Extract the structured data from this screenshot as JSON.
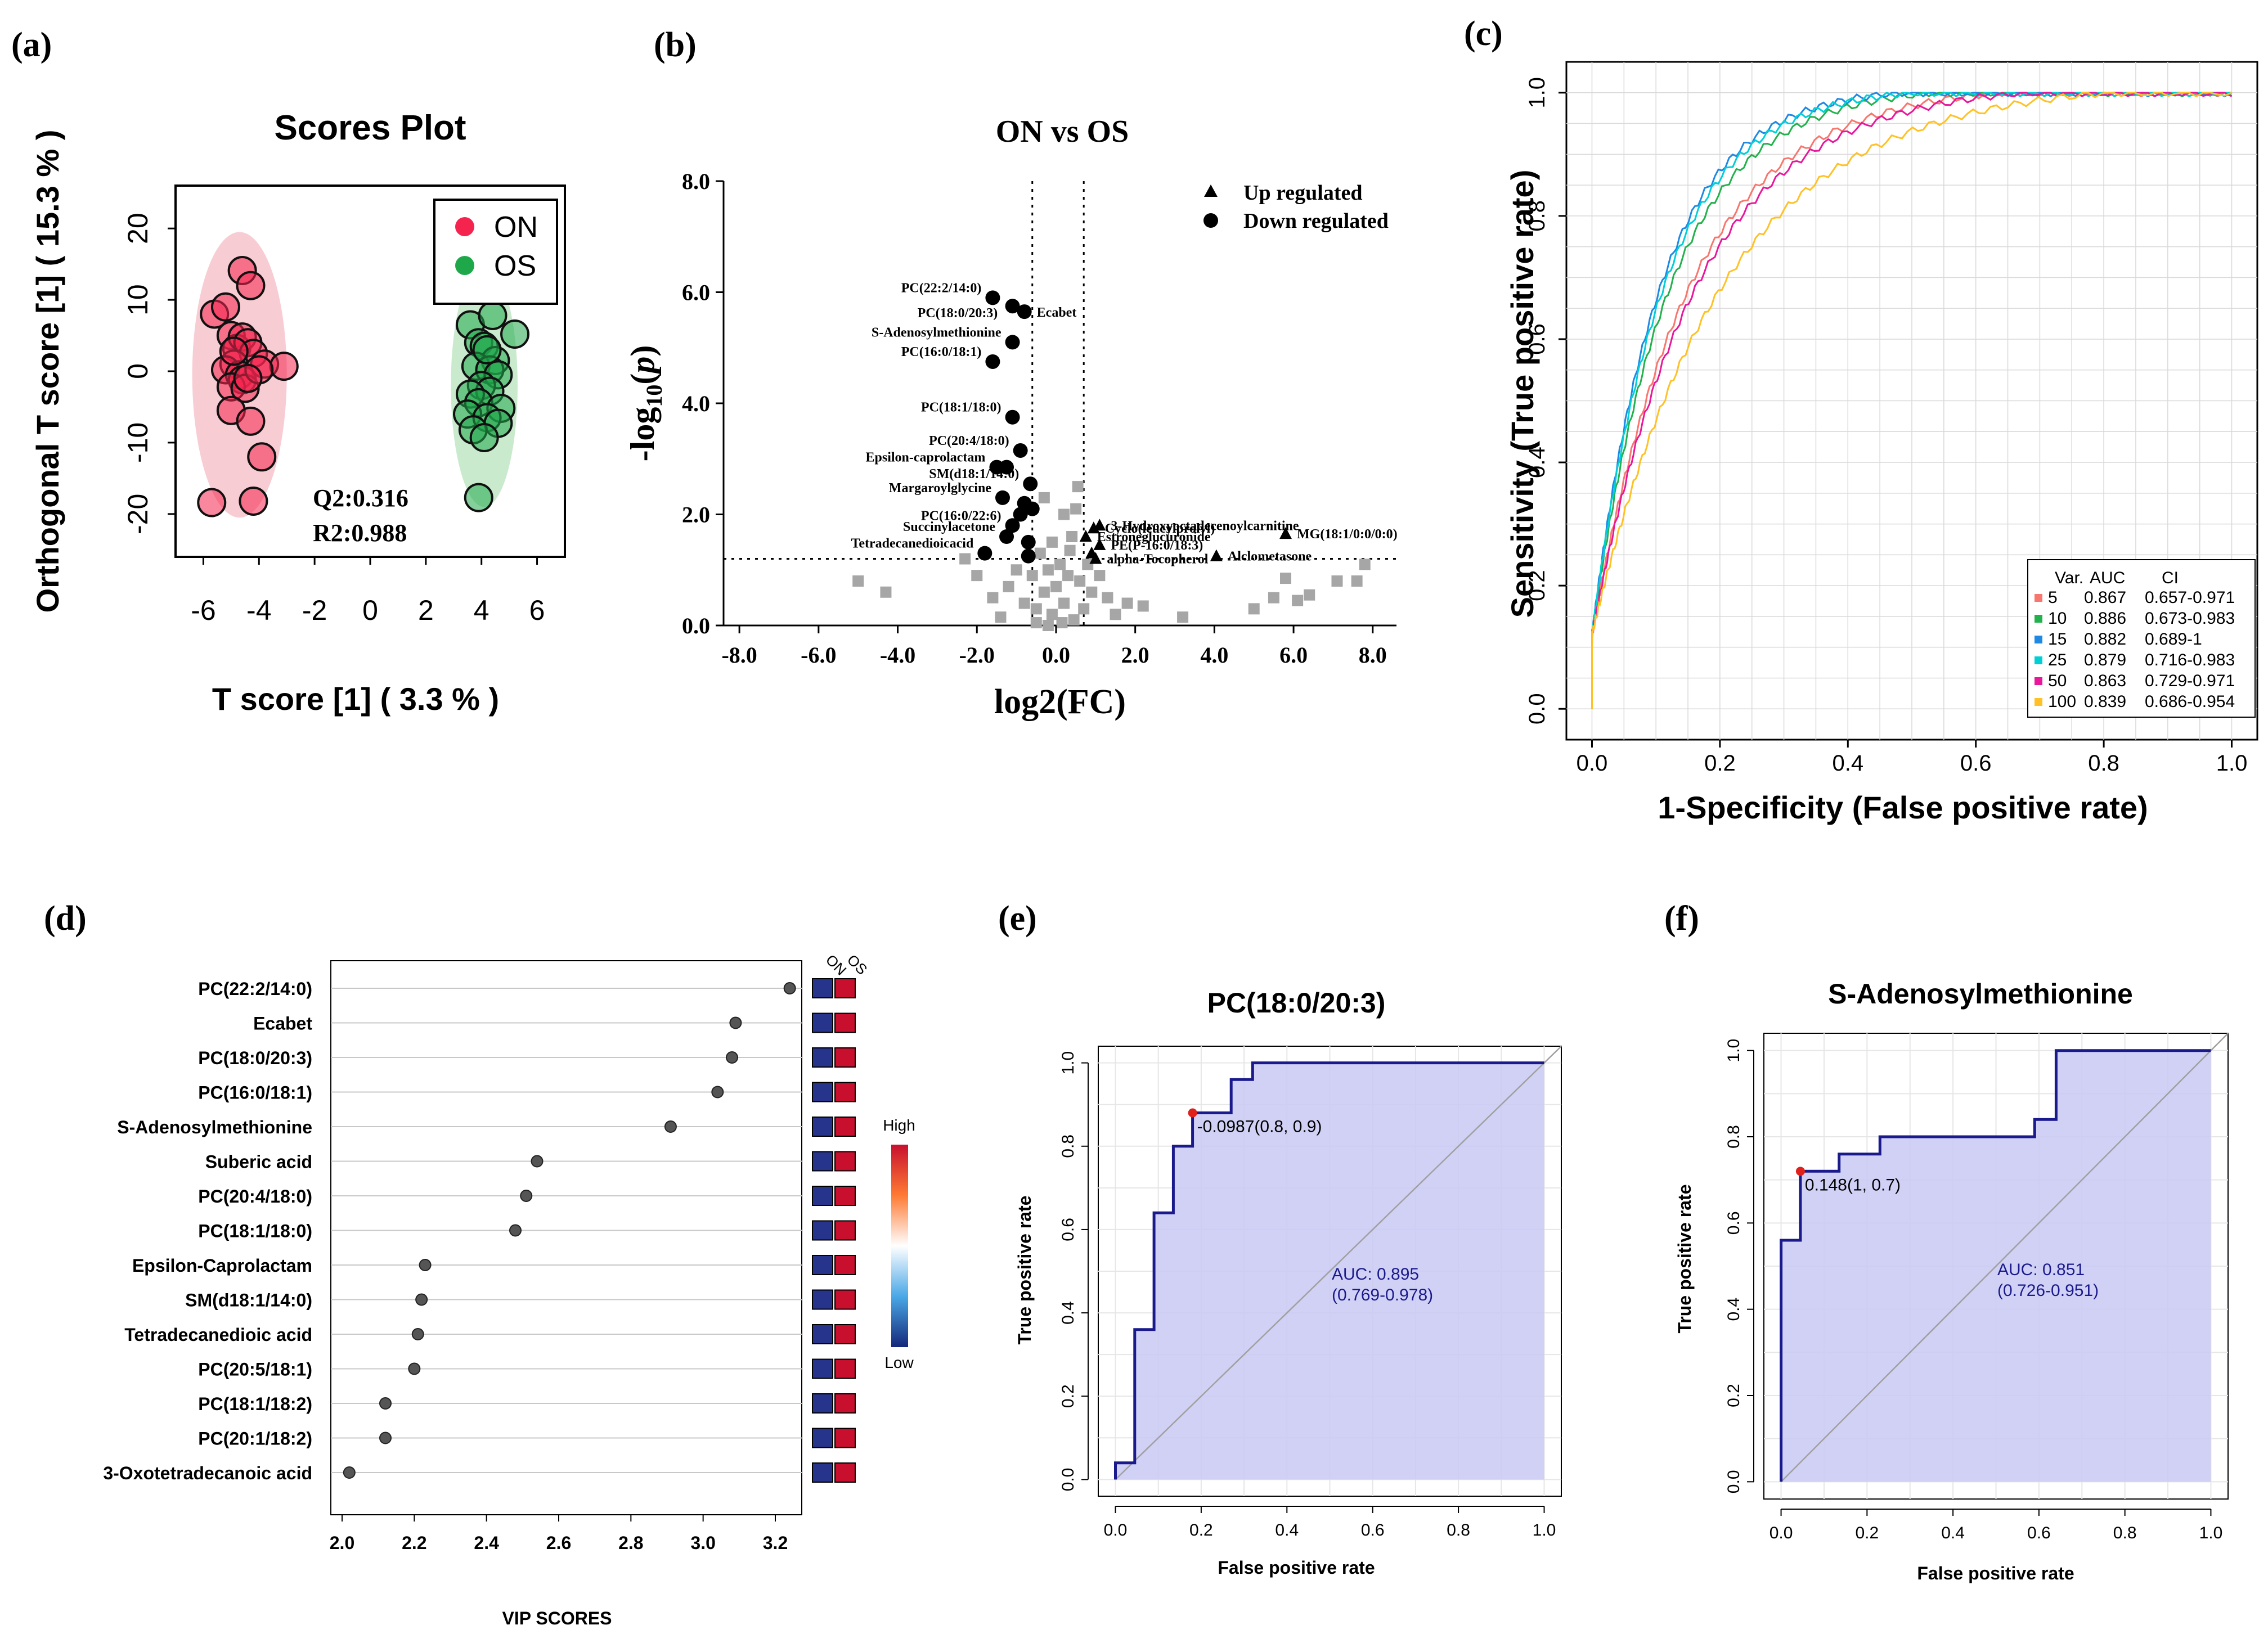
{
  "panel_labels": [
    "(a)",
    "(b)",
    "(c)",
    "(d)",
    "(e)",
    "(f)"
  ],
  "chart_data": [
    {
      "id": "a",
      "type": "scatter",
      "title": "Scores Plot",
      "xlabel": "T score [1] ( 3.3 % )",
      "ylabel": "Orthogonal T score [1] ( 15.3 % )",
      "xlim": [
        -7,
        7
      ],
      "ylim": [
        -26,
        26
      ],
      "xticks": [
        -6,
        -4,
        -2,
        0,
        2,
        4,
        6
      ],
      "yticks": [
        -20,
        -10,
        0,
        10,
        20
      ],
      "legend": [
        {
          "name": "ON",
          "color": "#f4244f"
        },
        {
          "name": "OS",
          "color": "#1fa84a"
        }
      ],
      "annotations": [
        "Q2:0.316",
        "R2:0.988"
      ],
      "ellipses": [
        {
          "group": "ON",
          "cx": -4.7,
          "cy": -0.5,
          "rx": 1.7,
          "ry": 20,
          "color": "#f3a3ae"
        },
        {
          "group": "OS",
          "cx": 4.1,
          "cy": -2,
          "rx": 1.2,
          "ry": 17,
          "color": "#9fd8a6"
        }
      ],
      "series": [
        {
          "name": "ON",
          "color": "#f4244f",
          "points": [
            [
              -5.6,
              8
            ],
            [
              -5.2,
              9
            ],
            [
              -4.6,
              14.1
            ],
            [
              -4.3,
              12
            ],
            [
              -5.0,
              5
            ],
            [
              -4.8,
              3.2
            ],
            [
              -4.6,
              4.8
            ],
            [
              -4.4,
              4
            ],
            [
              -4.2,
              2.5
            ],
            [
              -4.9,
              1
            ],
            [
              -5.2,
              0.2
            ],
            [
              -4.7,
              -0.5
            ],
            [
              -4.6,
              -1.2
            ],
            [
              -5.0,
              -2.2
            ],
            [
              -4.5,
              -2.4
            ],
            [
              -3.8,
              1
            ],
            [
              -3.1,
              0.7
            ],
            [
              -4.0,
              0.2
            ],
            [
              -5.0,
              -5.5
            ],
            [
              -4.3,
              -7
            ],
            [
              -3.9,
              -12
            ],
            [
              -5.7,
              -18.4
            ],
            [
              -4.2,
              -18.2
            ],
            [
              -4.9,
              2.8
            ],
            [
              -4.4,
              -1
            ]
          ]
        },
        {
          "name": "OS",
          "color": "#1fa84a",
          "points": [
            [
              3.6,
              6.5
            ],
            [
              4.4,
              7.8
            ],
            [
              5.2,
              5.2
            ],
            [
              3.9,
              4
            ],
            [
              4.1,
              3.5
            ],
            [
              4.5,
              1.5
            ],
            [
              3.8,
              0.7
            ],
            [
              4.3,
              0.2
            ],
            [
              4.6,
              -0.5
            ],
            [
              4.0,
              -2
            ],
            [
              4.3,
              -2.8
            ],
            [
              3.6,
              -3.2
            ],
            [
              3.9,
              -4.4
            ],
            [
              4.7,
              -5.2
            ],
            [
              3.5,
              -6
            ],
            [
              4.2,
              -6.5
            ],
            [
              4.6,
              -7.3
            ],
            [
              3.7,
              -8.2
            ],
            [
              4.1,
              -9.3
            ],
            [
              3.9,
              -17.7
            ],
            [
              4.2,
              3
            ]
          ]
        }
      ]
    },
    {
      "id": "b",
      "type": "scatter",
      "title": "ON vs OS",
      "xlabel": "log2(FC)",
      "ylabel": "-log10(p)",
      "xlim": [
        -8.4,
        8.6
      ],
      "ylim": [
        0,
        8
      ],
      "xticks": [
        -8,
        -6,
        -4,
        -2,
        0,
        2,
        4,
        6,
        8
      ],
      "xtick_labels": [
        "-8.0",
        "-6.0",
        "-4.0",
        "-2.0",
        "0.0",
        "2.0",
        "4.0",
        "6.0",
        "8.0"
      ],
      "yticks": [
        0,
        2,
        4,
        6,
        8
      ],
      "ytick_labels": [
        "0.0",
        "2.0",
        "4.0",
        "6.0",
        "8.0"
      ],
      "thresholds": {
        "fc": [
          -0.6,
          0.7
        ],
        "p": 1.2
      },
      "legend": [
        {
          "name": "Up regulated",
          "marker": "triangle"
        },
        {
          "name": "Down regulated",
          "marker": "circle"
        }
      ],
      "down_regulated": [
        {
          "x": -1.6,
          "y": 5.9,
          "label": "PC(22:2/14:0)"
        },
        {
          "x": -1.1,
          "y": 5.75
        },
        {
          "x": -0.8,
          "y": 5.65,
          "label": "PC(18:0/20:3)"
        },
        {
          "x": -1.1,
          "y": 5.1,
          "label": "S-Adenosylmethionine"
        },
        {
          "x": -1.6,
          "y": 4.75,
          "label": "PC(16:0/18:1)"
        },
        {
          "x": -1.1,
          "y": 3.75,
          "label": "PC(18:1/18:0)"
        },
        {
          "x": -0.9,
          "y": 3.15,
          "label": "PC(20:4/18:0)"
        },
        {
          "x": -1.5,
          "y": 2.85,
          "label": "Epsilon-caprolactam"
        },
        {
          "x": -1.25,
          "y": 2.85
        },
        {
          "x": -0.65,
          "y": 2.55,
          "label": "SM(d18:1/14:0)"
        },
        {
          "x": -1.35,
          "y": 2.3,
          "label": "Margaroylglycine"
        },
        {
          "x": -0.8,
          "y": 2.2
        },
        {
          "x": -0.6,
          "y": 2.1
        },
        {
          "x": -0.9,
          "y": 2.0
        },
        {
          "x": -1.1,
          "y": 1.8,
          "label": "PC(16:0/22:6)"
        },
        {
          "x": -1.25,
          "y": 1.6,
          "label": "Succinylacetone"
        },
        {
          "x": -0.7,
          "y": 1.5
        },
        {
          "x": -1.8,
          "y": 1.3,
          "label": "Tetradecanedioicacid"
        },
        {
          "x": -0.7,
          "y": 1.25
        }
      ],
      "up_regulated": [
        {
          "x": 0.95,
          "y": 1.75,
          "label": "Cyclo(leucylprolyl)"
        },
        {
          "x": 1.1,
          "y": 1.8,
          "label": "3-Hydroxyoctadecenoylcarnitine"
        },
        {
          "x": 0.75,
          "y": 1.6,
          "label": "Estroneglucuronide"
        },
        {
          "x": 1.1,
          "y": 1.45,
          "label": "PE(P-16:0/18:3)"
        },
        {
          "x": 0.9,
          "y": 1.3
        },
        {
          "x": 5.8,
          "y": 1.65,
          "label": "MG(18:1/0:0/0:0)"
        },
        {
          "x": 4.05,
          "y": 1.25,
          "label": "Alclometasone"
        },
        {
          "x": 1.0,
          "y": 1.2,
          "label": "alpha-Tocopherol"
        }
      ],
      "not_significant": [
        [
          -5.0,
          0.8
        ],
        [
          -4.3,
          0.6
        ],
        [
          -2.3,
          1.2
        ],
        [
          -2.0,
          0.9
        ],
        [
          -1.6,
          0.5
        ],
        [
          -1.4,
          0.15
        ],
        [
          -1.2,
          0.7
        ],
        [
          -1.0,
          1.0
        ],
        [
          -0.8,
          0.4
        ],
        [
          -0.6,
          0.9
        ],
        [
          -0.5,
          0.3
        ],
        [
          -0.4,
          1.3
        ],
        [
          -0.3,
          0.6
        ],
        [
          -0.2,
          1.0
        ],
        [
          -0.1,
          0.2
        ],
        [
          0.0,
          0.7
        ],
        [
          0.1,
          1.1
        ],
        [
          0.2,
          0.4
        ],
        [
          0.3,
          0.9
        ],
        [
          0.4,
          1.6
        ],
        [
          0.5,
          2.1
        ],
        [
          0.55,
          2.5
        ],
        [
          0.6,
          0.8
        ],
        [
          0.7,
          0.3
        ],
        [
          0.8,
          1.1
        ],
        [
          0.9,
          0.6
        ],
        [
          1.1,
          0.9
        ],
        [
          1.3,
          0.5
        ],
        [
          1.5,
          0.2
        ],
        [
          1.8,
          0.4
        ],
        [
          2.2,
          0.35
        ],
        [
          3.2,
          0.15
        ],
        [
          5.0,
          0.3
        ],
        [
          5.5,
          0.5
        ],
        [
          5.8,
          0.85
        ],
        [
          6.1,
          0.45
        ],
        [
          6.4,
          0.55
        ],
        [
          7.1,
          0.8
        ],
        [
          7.6,
          0.8
        ],
        [
          7.8,
          1.1
        ],
        [
          -0.3,
          2.3
        ],
        [
          0.2,
          2.0
        ],
        [
          -0.1,
          1.5
        ],
        [
          0.35,
          1.35
        ],
        [
          -0.5,
          0.05
        ],
        [
          0.15,
          0.05
        ],
        [
          -0.2,
          0.0
        ],
        [
          0.45,
          0.1
        ]
      ]
    },
    {
      "id": "c",
      "type": "line",
      "xlabel": "1-Specificity (False positive rate)",
      "ylabel": "Sensitivity (True positive rate)",
      "xlim": [
        -0.04,
        1.04
      ],
      "ylim": [
        -0.05,
        1.05
      ],
      "xticks": [
        0.0,
        0.2,
        0.4,
        0.6,
        0.8,
        1.0
      ],
      "xtick_labels": [
        "0.0",
        "0.2",
        "0.4",
        "0.6",
        "0.8",
        "1.0"
      ],
      "yticks": [
        0.0,
        0.2,
        0.4,
        0.6,
        0.8,
        1.0
      ],
      "ytick_labels": [
        "0.0",
        "0.2",
        "0.4",
        "0.6",
        "0.8",
        "1.0"
      ],
      "legend_header": [
        "Var.",
        "AUC",
        "CI"
      ],
      "series": [
        {
          "var": "5",
          "auc": "0.867",
          "ci": "0.657-0.971",
          "color": "#f8766d",
          "k": 0.15
        },
        {
          "var": "10",
          "auc": "0.886",
          "ci": "0.673-0.983",
          "color": "#22b14c",
          "k": 0.12
        },
        {
          "var": "15",
          "auc": "0.882",
          "ci": "0.689-1",
          "color": "#1e88e5",
          "k": 0.105
        },
        {
          "var": "25",
          "auc": "0.879",
          "ci": "0.716-0.983",
          "color": "#00d0d6",
          "k": 0.11
        },
        {
          "var": "50",
          "auc": "0.863",
          "ci": "0.729-0.971",
          "color": "#e8179b",
          "k": 0.16
        },
        {
          "var": "100",
          "auc": "0.839",
          "ci": "0.686-0.954",
          "color": "#ffc125",
          "k": 0.2
        }
      ]
    },
    {
      "id": "d",
      "type": "scatter",
      "xlabel": "VIP SCORES",
      "xlim": [
        1.96,
        3.3
      ],
      "xticks": [
        2.0,
        2.2,
        2.4,
        2.6,
        2.8,
        3.0,
        3.2
      ],
      "xtick_labels": [
        "2.0",
        "2.2",
        "2.4",
        "2.6",
        "2.8",
        "3.0",
        "3.2"
      ],
      "heatmap_columns": [
        "ON",
        "OS"
      ],
      "colorbar_labels": [
        "High",
        "Low"
      ],
      "metabolites": [
        {
          "name": "PC(22:2/14:0)",
          "vip": 3.24
        },
        {
          "name": "Ecabet",
          "vip": 3.09
        },
        {
          "name": "PC(18:0/20:3)",
          "vip": 3.08
        },
        {
          "name": "PC(16:0/18:1)",
          "vip": 3.04
        },
        {
          "name": "S-Adenosylmethionine",
          "vip": 2.91
        },
        {
          "name": "Suberic acid",
          "vip": 2.54
        },
        {
          "name": "PC(20:4/18:0)",
          "vip": 2.51
        },
        {
          "name": "PC(18:1/18:0)",
          "vip": 2.48
        },
        {
          "name": "Epsilon-Caprolactam",
          "vip": 2.23
        },
        {
          "name": "SM(d18:1/14:0)",
          "vip": 2.22
        },
        {
          "name": "Tetradecanedioic acid",
          "vip": 2.21
        },
        {
          "name": "PC(20:5/18:1)",
          "vip": 2.2
        },
        {
          "name": "PC(18:1/18:2)",
          "vip": 2.12
        },
        {
          "name": "PC(20:1/18:2)",
          "vip": 2.12
        },
        {
          "name": "3-Oxotetradecanoic acid",
          "vip": 2.02
        }
      ]
    },
    {
      "id": "e",
      "type": "line",
      "title": "PC(18:0/20:3)",
      "xlabel": "False positive rate",
      "ylabel": "True positive rate",
      "xlim": [
        -0.04,
        1.04
      ],
      "ylim": [
        -0.04,
        1.04
      ],
      "xticks": [
        0.0,
        0.2,
        0.4,
        0.6,
        0.8,
        1.0
      ],
      "xtick_labels": [
        "0.0",
        "0.2",
        "0.4",
        "0.6",
        "0.8",
        "1.0"
      ],
      "yticks": [
        0.0,
        0.2,
        0.4,
        0.6,
        0.8,
        1.0
      ],
      "ytick_labels": [
        "0.0",
        "0.2",
        "0.4",
        "0.6",
        "0.8",
        "1.0"
      ],
      "roc": [
        [
          0,
          0
        ],
        [
          0,
          0.04
        ],
        [
          0.045,
          0.04
        ],
        [
          0.045,
          0.36
        ],
        [
          0.09,
          0.36
        ],
        [
          0.09,
          0.64
        ],
        [
          0.135,
          0.64
        ],
        [
          0.135,
          0.8
        ],
        [
          0.18,
          0.8
        ],
        [
          0.18,
          0.88
        ],
        [
          0.27,
          0.88
        ],
        [
          0.27,
          0.96
        ],
        [
          0.32,
          0.96
        ],
        [
          0.32,
          1.0
        ],
        [
          1.0,
          1.0
        ]
      ],
      "cutoff": {
        "x": 0.18,
        "y": 0.88,
        "label": "-0.0987(0.8, 0.9)"
      },
      "auc_label": "AUC: 0.895",
      "ci_label": "(0.769-0.978)"
    },
    {
      "id": "f",
      "type": "line",
      "title": "S-Adenosylmethionine",
      "xlabel": "False positive rate",
      "ylabel": "True positive rate",
      "xlim": [
        -0.04,
        1.04
      ],
      "ylim": [
        -0.04,
        1.04
      ],
      "xticks": [
        0.0,
        0.2,
        0.4,
        0.6,
        0.8,
        1.0
      ],
      "xtick_labels": [
        "0.0",
        "0.2",
        "0.4",
        "0.6",
        "0.8",
        "1.0"
      ],
      "yticks": [
        0.0,
        0.2,
        0.4,
        0.6,
        0.8,
        1.0
      ],
      "ytick_labels": [
        "0.0",
        "0.2",
        "0.4",
        "0.6",
        "0.8",
        "1.0"
      ],
      "roc": [
        [
          0,
          0
        ],
        [
          0,
          0.56
        ],
        [
          0.045,
          0.56
        ],
        [
          0.045,
          0.72
        ],
        [
          0.135,
          0.72
        ],
        [
          0.135,
          0.76
        ],
        [
          0.23,
          0.76
        ],
        [
          0.23,
          0.8
        ],
        [
          0.59,
          0.8
        ],
        [
          0.59,
          0.84
        ],
        [
          0.64,
          0.84
        ],
        [
          0.64,
          1.0
        ],
        [
          1.0,
          1.0
        ]
      ],
      "cutoff": {
        "x": 0.045,
        "y": 0.72,
        "label": "0.148(1, 0.7)"
      },
      "auc_label": "AUC: 0.851",
      "ci_label": "(0.726-0.951)"
    }
  ]
}
